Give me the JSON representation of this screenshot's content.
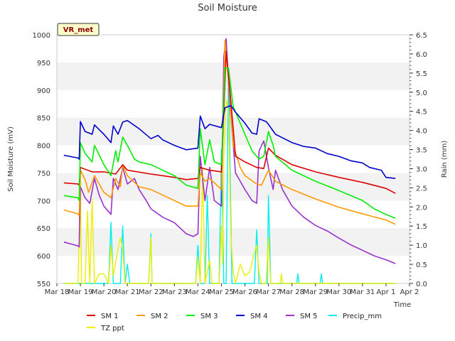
{
  "chart_data": {
    "type": "line",
    "title": "Soil Moisture",
    "xlabel": "Time",
    "ylabel": "Soil Moisture (mV)",
    "y2label": "Rain (mm)",
    "badge": "VR_met",
    "x_ticks": [
      "Mar 18",
      "Mar 19",
      "Mar 20",
      "Mar 21",
      "Mar 22",
      "Mar 23",
      "Mar 24",
      "Mar 25",
      "Mar 26",
      "Mar 27",
      "Mar 28",
      "Mar 29",
      "Mar 30",
      "Mar 31",
      "Apr 1",
      "Apr 2"
    ],
    "xlim": [
      0,
      15
    ],
    "ylim": [
      550,
      1000
    ],
    "y_ticks": [
      550,
      600,
      650,
      700,
      750,
      800,
      850,
      900,
      950,
      1000
    ],
    "y2lim": [
      0,
      6.5
    ],
    "y2_ticks": [
      "0.0",
      "0.5",
      "1.0",
      "1.5",
      "2.0",
      "2.5",
      "3.0",
      "3.5",
      "4.0",
      "4.5",
      "5.0",
      "5.5",
      "6.0",
      "6.5"
    ],
    "grid": "horizontal bands",
    "legend_position": "bottom",
    "colors": {
      "sm1": "#dd0000",
      "sm2": "#ff9900",
      "sm3": "#00ee00",
      "sm4": "#0000cc",
      "sm5": "#9933cc",
      "precip": "#00eeee",
      "tz": "#eeee00",
      "band": "#f2f2f2",
      "badge_bg": "#ffffcc"
    },
    "series": [
      {
        "name": "SM 1",
        "axis": "left",
        "color_key": "sm1",
        "points": [
          [
            0.3,
            732
          ],
          [
            0.9,
            730
          ],
          [
            0.95,
            728
          ],
          [
            1.0,
            760
          ],
          [
            1.5,
            752
          ],
          [
            2.0,
            752
          ],
          [
            2.5,
            748
          ],
          [
            2.8,
            765
          ],
          [
            3.0,
            755
          ],
          [
            4.0,
            748
          ],
          [
            5.0,
            742
          ],
          [
            5.5,
            738
          ],
          [
            6.0,
            740
          ],
          [
            6.1,
            760
          ],
          [
            6.5,
            755
          ],
          [
            7.0,
            752
          ],
          [
            7.2,
            970
          ],
          [
            7.4,
            880
          ],
          [
            7.6,
            780
          ],
          [
            8.0,
            770
          ],
          [
            8.5,
            760
          ],
          [
            8.8,
            758
          ],
          [
            9.0,
            795
          ],
          [
            9.3,
            782
          ],
          [
            10,
            765
          ],
          [
            11,
            752
          ],
          [
            12,
            742
          ],
          [
            13,
            733
          ],
          [
            14,
            722
          ],
          [
            14.4,
            713
          ]
        ]
      },
      {
        "name": "SM 2",
        "axis": "left",
        "color_key": "sm2",
        "points": [
          [
            0.3,
            683
          ],
          [
            0.9,
            676
          ],
          [
            0.95,
            672
          ],
          [
            1.0,
            755
          ],
          [
            1.2,
            738
          ],
          [
            1.35,
            715
          ],
          [
            1.6,
            745
          ],
          [
            2.0,
            715
          ],
          [
            2.3,
            705
          ],
          [
            2.5,
            740
          ],
          [
            2.7,
            725
          ],
          [
            2.8,
            765
          ],
          [
            3.0,
            745
          ],
          [
            3.5,
            725
          ],
          [
            4.0,
            720
          ],
          [
            5.0,
            700
          ],
          [
            5.5,
            690
          ],
          [
            6.0,
            690
          ],
          [
            6.1,
            750
          ],
          [
            6.3,
            735
          ],
          [
            6.5,
            740
          ],
          [
            7.0,
            720
          ],
          [
            7.15,
            990
          ],
          [
            7.3,
            920
          ],
          [
            7.5,
            800
          ],
          [
            7.8,
            760
          ],
          [
            8.0,
            745
          ],
          [
            8.5,
            730
          ],
          [
            8.7,
            728
          ],
          [
            9.0,
            755
          ],
          [
            9.3,
            735
          ],
          [
            10,
            720
          ],
          [
            11,
            703
          ],
          [
            12,
            688
          ],
          [
            13,
            676
          ],
          [
            14,
            665
          ],
          [
            14.4,
            657
          ]
        ]
      },
      {
        "name": "SM 3",
        "axis": "left",
        "color_key": "sm3",
        "points": [
          [
            0.3,
            709
          ],
          [
            0.9,
            705
          ],
          [
            0.95,
            700
          ],
          [
            1.0,
            805
          ],
          [
            1.2,
            785
          ],
          [
            1.5,
            770
          ],
          [
            1.6,
            800
          ],
          [
            2.0,
            765
          ],
          [
            2.3,
            745
          ],
          [
            2.5,
            790
          ],
          [
            2.6,
            770
          ],
          [
            2.8,
            815
          ],
          [
            3.0,
            800
          ],
          [
            3.3,
            775
          ],
          [
            3.5,
            770
          ],
          [
            4.0,
            765
          ],
          [
            5.0,
            745
          ],
          [
            5.5,
            728
          ],
          [
            6.0,
            722
          ],
          [
            6.1,
            830
          ],
          [
            6.3,
            765
          ],
          [
            6.5,
            810
          ],
          [
            6.7,
            770
          ],
          [
            7.0,
            765
          ],
          [
            7.15,
            940
          ],
          [
            7.3,
            940
          ],
          [
            7.5,
            870
          ],
          [
            7.8,
            840
          ],
          [
            8.0,
            820
          ],
          [
            8.3,
            790
          ],
          [
            8.6,
            775
          ],
          [
            8.8,
            780
          ],
          [
            9.0,
            825
          ],
          [
            9.2,
            800
          ],
          [
            9.3,
            780
          ],
          [
            10,
            755
          ],
          [
            11,
            735
          ],
          [
            12,
            718
          ],
          [
            13,
            700
          ],
          [
            13.5,
            685
          ],
          [
            14,
            675
          ],
          [
            14.4,
            668
          ]
        ]
      },
      {
        "name": "SM 4",
        "axis": "left",
        "color_key": "sm4",
        "points": [
          [
            0.3,
            782
          ],
          [
            0.9,
            777
          ],
          [
            0.95,
            775
          ],
          [
            1.0,
            843
          ],
          [
            1.2,
            825
          ],
          [
            1.5,
            820
          ],
          [
            1.6,
            837
          ],
          [
            2.0,
            820
          ],
          [
            2.3,
            805
          ],
          [
            2.4,
            835
          ],
          [
            2.6,
            820
          ],
          [
            2.8,
            842
          ],
          [
            3.0,
            845
          ],
          [
            3.5,
            830
          ],
          [
            4.0,
            812
          ],
          [
            4.3,
            818
          ],
          [
            4.5,
            810
          ],
          [
            5.0,
            800
          ],
          [
            5.5,
            792
          ],
          [
            6.0,
            795
          ],
          [
            6.1,
            853
          ],
          [
            6.3,
            830
          ],
          [
            6.5,
            838
          ],
          [
            7.0,
            832
          ],
          [
            7.15,
            868
          ],
          [
            7.4,
            872
          ],
          [
            7.6,
            860
          ],
          [
            8.0,
            840
          ],
          [
            8.3,
            822
          ],
          [
            8.5,
            820
          ],
          [
            8.6,
            848
          ],
          [
            8.9,
            843
          ],
          [
            9.0,
            838
          ],
          [
            9.3,
            820
          ],
          [
            10,
            805
          ],
          [
            10.5,
            798
          ],
          [
            11,
            795
          ],
          [
            11.5,
            785
          ],
          [
            12,
            780
          ],
          [
            12.5,
            772
          ],
          [
            13,
            768
          ],
          [
            13.3,
            760
          ],
          [
            13.8,
            755
          ],
          [
            14,
            742
          ],
          [
            14.4,
            740
          ]
        ]
      },
      {
        "name": "SM 5",
        "axis": "left",
        "color_key": "sm5",
        "points": [
          [
            0.3,
            625
          ],
          [
            0.9,
            618
          ],
          [
            0.95,
            616
          ],
          [
            1.0,
            725
          ],
          [
            1.2,
            705
          ],
          [
            1.4,
            695
          ],
          [
            1.6,
            740
          ],
          [
            1.8,
            710
          ],
          [
            2.0,
            690
          ],
          [
            2.3,
            675
          ],
          [
            2.4,
            740
          ],
          [
            2.6,
            720
          ],
          [
            2.8,
            760
          ],
          [
            3.0,
            730
          ],
          [
            3.3,
            740
          ],
          [
            3.5,
            720
          ],
          [
            3.8,
            700
          ],
          [
            4.0,
            685
          ],
          [
            4.5,
            670
          ],
          [
            5.0,
            660
          ],
          [
            5.5,
            640
          ],
          [
            5.8,
            635
          ],
          [
            6.0,
            640
          ],
          [
            6.1,
            780
          ],
          [
            6.3,
            700
          ],
          [
            6.5,
            760
          ],
          [
            6.7,
            700
          ],
          [
            7.0,
            690
          ],
          [
            7.1,
            960
          ],
          [
            7.2,
            993
          ],
          [
            7.35,
            880
          ],
          [
            7.6,
            750
          ],
          [
            8.0,
            720
          ],
          [
            8.3,
            700
          ],
          [
            8.5,
            695
          ],
          [
            8.6,
            790
          ],
          [
            8.8,
            808
          ],
          [
            9.0,
            760
          ],
          [
            9.2,
            720
          ],
          [
            9.3,
            755
          ],
          [
            9.6,
            720
          ],
          [
            10,
            690
          ],
          [
            10.5,
            670
          ],
          [
            11,
            655
          ],
          [
            11.5,
            645
          ],
          [
            12,
            632
          ],
          [
            12.5,
            620
          ],
          [
            13,
            610
          ],
          [
            13.5,
            600
          ],
          [
            14,
            593
          ],
          [
            14.4,
            586
          ]
        ]
      },
      {
        "name": "Precip_mm",
        "axis": "right",
        "color_key": "precip",
        "points": [
          [
            0.3,
            0
          ],
          [
            2.2,
            0
          ],
          [
            2.3,
            1.6
          ],
          [
            2.4,
            0
          ],
          [
            2.7,
            0
          ],
          [
            2.8,
            1.5
          ],
          [
            2.9,
            0
          ],
          [
            3.0,
            0.5
          ],
          [
            3.1,
            0
          ],
          [
            3.9,
            0
          ],
          [
            4.0,
            1.3
          ],
          [
            4.05,
            0
          ],
          [
            5.9,
            0
          ],
          [
            6.0,
            1.0
          ],
          [
            6.1,
            0
          ],
          [
            6.3,
            0
          ],
          [
            6.4,
            2.3
          ],
          [
            6.5,
            0
          ],
          [
            6.9,
            0
          ],
          [
            7.0,
            3.5
          ],
          [
            7.1,
            0
          ],
          [
            7.2,
            0
          ],
          [
            7.3,
            5.6
          ],
          [
            7.45,
            0
          ],
          [
            8.4,
            0
          ],
          [
            8.5,
            1.4
          ],
          [
            8.6,
            0
          ],
          [
            8.95,
            0
          ],
          [
            9.0,
            2.3
          ],
          [
            9.1,
            0
          ],
          [
            10.2,
            0
          ],
          [
            10.25,
            0.25
          ],
          [
            10.3,
            0
          ],
          [
            11.2,
            0
          ],
          [
            11.25,
            0.25
          ],
          [
            11.3,
            0
          ],
          [
            14.4,
            0
          ]
        ]
      },
      {
        "name": "TZ ppt",
        "axis": "right",
        "color_key": "tz",
        "points": [
          [
            0.3,
            0
          ],
          [
            0.9,
            0
          ],
          [
            1.0,
            2.9
          ],
          [
            1.05,
            0
          ],
          [
            1.2,
            0
          ],
          [
            1.3,
            1.9
          ],
          [
            1.4,
            0
          ],
          [
            1.5,
            2.2
          ],
          [
            1.6,
            0
          ],
          [
            1.8,
            0.25
          ],
          [
            2.0,
            0.25
          ],
          [
            2.2,
            0
          ],
          [
            2.3,
            1.0
          ],
          [
            2.4,
            0.2
          ],
          [
            2.6,
            0.9
          ],
          [
            2.7,
            1.2
          ],
          [
            2.8,
            0.9
          ],
          [
            2.9,
            0
          ],
          [
            3.9,
            0
          ],
          [
            4.0,
            1.2
          ],
          [
            4.05,
            0
          ],
          [
            5.9,
            0
          ],
          [
            6.0,
            0.7
          ],
          [
            6.1,
            0
          ],
          [
            6.2,
            3.0
          ],
          [
            6.3,
            0
          ],
          [
            6.5,
            0.6
          ],
          [
            6.6,
            0
          ],
          [
            6.9,
            0
          ],
          [
            7.0,
            1.5
          ],
          [
            7.05,
            0.5
          ],
          [
            7.1,
            3.3
          ],
          [
            7.2,
            4.8
          ],
          [
            7.3,
            4.5
          ],
          [
            7.4,
            1.3
          ],
          [
            7.5,
            0.3
          ],
          [
            7.6,
            0
          ],
          [
            7.8,
            0.5
          ],
          [
            8.0,
            0.2
          ],
          [
            8.2,
            0.3
          ],
          [
            8.4,
            0.8
          ],
          [
            8.5,
            1.0
          ],
          [
            8.6,
            0.3
          ],
          [
            8.7,
            0
          ],
          [
            8.9,
            0
          ],
          [
            9.0,
            1.2
          ],
          [
            9.1,
            0
          ],
          [
            9.5,
            0
          ],
          [
            9.55,
            0.25
          ],
          [
            9.6,
            0
          ],
          [
            14.4,
            0
          ]
        ]
      }
    ]
  }
}
